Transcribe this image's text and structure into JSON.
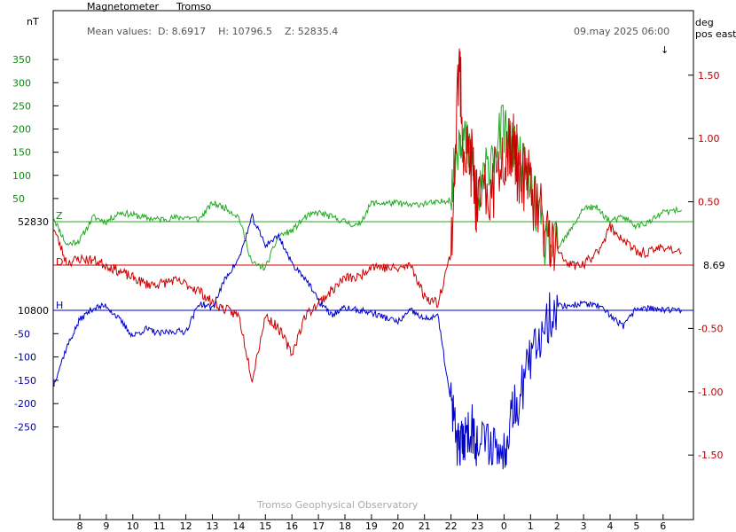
{
  "header": {
    "instrument": "Magnetometer",
    "station": "Tromso",
    "mean_values": "Mean values:  D: 8.6917    H: 10796.5    Z: 52835.4",
    "datetime": "09.may 2025 06:00",
    "arrow": "↓"
  },
  "axes": {
    "left_unit": "nT",
    "right_unit_line1": "deg",
    "right_unit_line2": "pos east",
    "z_ticks": [
      "350",
      "300",
      "250",
      "200",
      "150",
      "100",
      "50"
    ],
    "z_baseline_label": "52830",
    "h_ticks": [
      "-50",
      "-100",
      "-150",
      "-200",
      "-250"
    ],
    "h_baseline_label": "10800",
    "d_ticks": [
      "1.50",
      "1.00",
      "0.50",
      "-0.50",
      "-1.00",
      "-1.50"
    ],
    "d_baseline_label": "8.69",
    "x_ticks": [
      "8",
      "9",
      "10",
      "11",
      "12",
      "13",
      "14",
      "15",
      "16",
      "17",
      "18",
      "19",
      "20",
      "21",
      "22",
      "23",
      "0",
      "1",
      "2",
      "3",
      "4",
      "5",
      "6"
    ]
  },
  "watermark": "Tromso Geophysical Observatory",
  "colors": {
    "z": "#22aa22",
    "d": "#cc0000",
    "h": "#0000cc",
    "axis": "#000000"
  },
  "chart_data": {
    "type": "line",
    "x_unit": "hour (UT), 8 May 07:00 – 9 May 07:00",
    "x_hours": [
      7,
      7.5,
      8,
      8.5,
      9,
      9.5,
      10,
      10.5,
      11,
      11.5,
      12,
      12.5,
      13,
      13.5,
      14,
      14.5,
      15,
      15.5,
      16,
      16.5,
      17,
      17.5,
      18,
      18.5,
      19,
      19.5,
      20,
      20.5,
      21,
      21.5,
      22,
      22.3,
      22.5,
      22.8,
      23,
      23.5,
      24,
      24.3,
      24.5,
      25,
      25.5,
      26,
      26.5,
      27,
      27.5,
      28,
      28.5,
      29,
      29.5,
      30,
      30.7
    ],
    "series": [
      {
        "name": "Z",
        "baseline_label": "52830",
        "unit": "nT",
        "values": [
          10,
          -50,
          -40,
          10,
          0,
          20,
          15,
          8,
          5,
          8,
          10,
          5,
          40,
          30,
          10,
          -90,
          -100,
          -30,
          -20,
          10,
          20,
          10,
          0,
          -10,
          40,
          40,
          40,
          35,
          40,
          40,
          50,
          190,
          180,
          120,
          30,
          150,
          200,
          160,
          140,
          80,
          -40,
          -60,
          -20,
          30,
          30,
          0,
          10,
          -10,
          0,
          20,
          25
        ]
      },
      {
        "name": "D",
        "baseline_label": "8.69",
        "unit": "deg pos east",
        "values": [
          0.3,
          0.02,
          0.05,
          0.04,
          0.0,
          -0.05,
          -0.1,
          -0.15,
          -0.15,
          -0.12,
          -0.15,
          -0.2,
          -0.3,
          -0.35,
          -0.4,
          -0.9,
          -0.4,
          -0.5,
          -0.7,
          -0.4,
          -0.3,
          -0.2,
          -0.1,
          -0.1,
          0.0,
          -0.02,
          -0.03,
          0.0,
          -0.25,
          -0.3,
          0.1,
          1.6,
          0.9,
          0.8,
          0.4,
          0.6,
          0.9,
          1.0,
          0.8,
          0.6,
          0.3,
          0.1,
          0.0,
          0.0,
          0.1,
          0.3,
          0.2,
          0.1,
          0.1,
          0.15,
          0.1
        ]
      },
      {
        "name": "H",
        "baseline_label": "10800",
        "unit": "nT",
        "values": [
          -160,
          -80,
          -20,
          5,
          10,
          -20,
          -55,
          -40,
          -50,
          -45,
          -45,
          15,
          5,
          70,
          110,
          200,
          140,
          160,
          100,
          70,
          20,
          -10,
          5,
          0,
          -5,
          -15,
          -25,
          0,
          -20,
          -10,
          -200,
          -300,
          -270,
          -250,
          -290,
          -280,
          -310,
          -200,
          -200,
          -110,
          -30,
          10,
          10,
          15,
          10,
          -10,
          -35,
          5,
          5,
          0,
          0
        ]
      }
    ],
    "d_ylim": [
      -2.05,
      1.85
    ]
  }
}
